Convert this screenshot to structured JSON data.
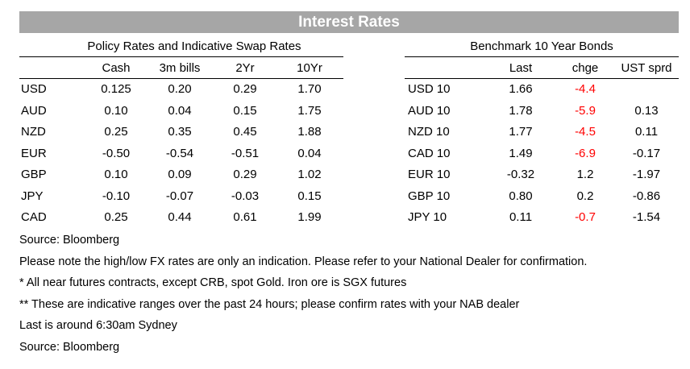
{
  "banner_title": "Interest Rates",
  "policy": {
    "title": "Policy Rates and Indicative Swap Rates",
    "columns": [
      "Cash",
      "3m bills",
      "2Yr",
      "10Yr"
    ],
    "rows": [
      {
        "ccy": "USD",
        "values": [
          "0.125",
          "0.20",
          "0.29",
          "1.70"
        ]
      },
      {
        "ccy": "AUD",
        "values": [
          "0.10",
          "0.04",
          "0.15",
          "1.75"
        ]
      },
      {
        "ccy": "NZD",
        "values": [
          "0.25",
          "0.35",
          "0.45",
          "1.88"
        ]
      },
      {
        "ccy": "EUR",
        "values": [
          "-0.50",
          "-0.54",
          "-0.51",
          "0.04"
        ]
      },
      {
        "ccy": "GBP",
        "values": [
          "0.10",
          "0.09",
          "0.29",
          "1.02"
        ]
      },
      {
        "ccy": "JPY",
        "values": [
          "-0.10",
          "-0.07",
          "-0.03",
          "0.15"
        ]
      },
      {
        "ccy": "CAD",
        "values": [
          "0.25",
          "0.44",
          "0.61",
          "1.99"
        ]
      }
    ]
  },
  "bonds": {
    "title": "Benchmark 10 Year Bonds",
    "columns": [
      "Last",
      "chge",
      "UST sprd"
    ],
    "rows": [
      {
        "name": "USD 10",
        "last": "1.66",
        "chge": "-4.4",
        "sprd": ""
      },
      {
        "name": "AUD 10",
        "last": "1.78",
        "chge": "-5.9",
        "sprd": "0.13"
      },
      {
        "name": "NZD 10",
        "last": "1.77",
        "chge": "-4.5",
        "sprd": "0.11"
      },
      {
        "name": "CAD 10",
        "last": "1.49",
        "chge": "-6.9",
        "sprd": "-0.17"
      },
      {
        "name": "EUR 10",
        "last": "-0.32",
        "chge": "1.2",
        "sprd": "-1.97"
      },
      {
        "name": "GBP 10",
        "last": "0.80",
        "chge": "0.2",
        "sprd": "-0.86"
      },
      {
        "name": "JPY 10",
        "last": "0.11",
        "chge": "-0.7",
        "sprd": "-1.54"
      }
    ]
  },
  "notes": [
    "Source: Bloomberg",
    "Please note the high/low FX rates are only an indication. Please refer to your National Dealer for confirmation.",
    "* All near futures contracts, except CRB, spot Gold.  Iron ore is SGX futures",
    "** These are indicative ranges over the past 24 hours; please confirm rates with your NAB dealer",
    "Last is around 6:30am Sydney",
    "Source: Bloomberg"
  ],
  "colors": {
    "banner_bg": "#a6a6a6",
    "negative_change": "#ff0000"
  }
}
